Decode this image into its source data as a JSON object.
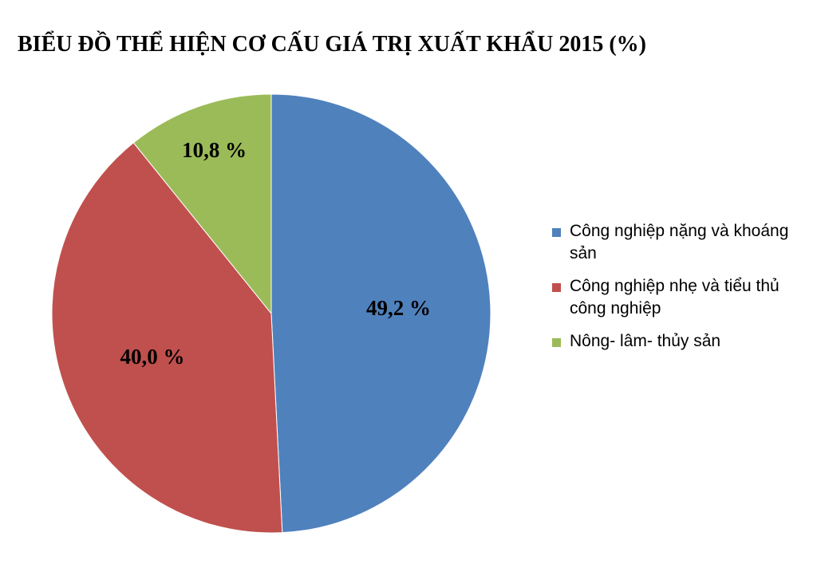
{
  "chart_data": {
    "type": "pie",
    "title": "BIỂU ĐỒ THỂ HIỆN CƠ CẤU GIÁ TRỊ XUẤT KHẨU 2015 (%)",
    "categories": [
      "Công nghiệp nặng và khoáng sản",
      "Công nghiệp nhẹ và tiểu thủ công nghiệp",
      "Nông- lâm- thủy sản"
    ],
    "values": [
      49.2,
      40.0,
      10.8
    ],
    "value_labels": [
      "49,2 %",
      "40,0 %",
      "10,8 %"
    ],
    "colors": [
      "#4f81bd",
      "#c0504d",
      "#9bbb59"
    ],
    "legend": "right"
  }
}
